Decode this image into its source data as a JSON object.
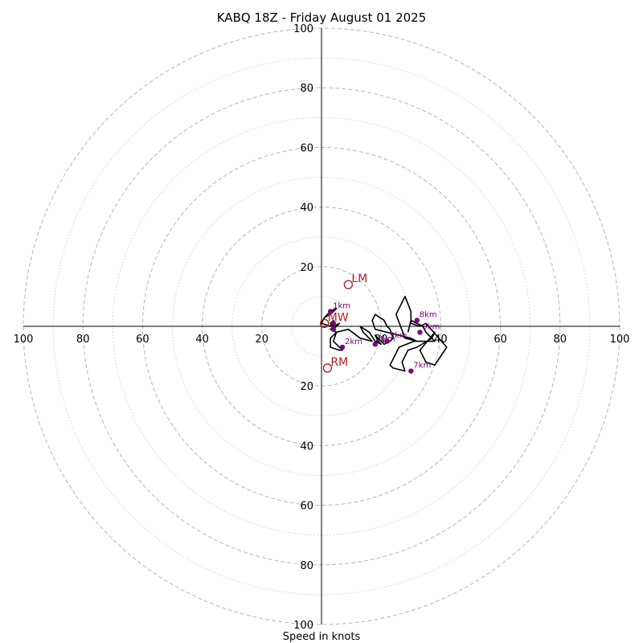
{
  "chart_data": {
    "type": "scatter",
    "title": "KABQ 18Z - Friday August 01 2025",
    "xlabel": "Speed in knots",
    "ylabel": "",
    "xlim": [
      -100,
      100
    ],
    "ylim": [
      -100,
      100
    ],
    "rings_major": [
      20,
      40,
      60,
      80,
      100
    ],
    "rings_minor": [
      10,
      30,
      50,
      70,
      90
    ],
    "x_tick_labels": [
      "100",
      "80",
      "60",
      "40",
      "20",
      "20",
      "40",
      "60",
      "80",
      "100"
    ],
    "y_tick_labels": [
      "100",
      "80",
      "60",
      "40",
      "20",
      "20",
      "40",
      "60",
      "80",
      "100"
    ],
    "x_tick_values": [
      -100,
      -80,
      -60,
      -40,
      -20,
      20,
      40,
      60,
      80,
      100
    ],
    "y_tick_values": [
      100,
      80,
      60,
      40,
      20,
      -20,
      -40,
      -60,
      -80,
      -100
    ],
    "hodograph_line": {
      "x": [
        1,
        3,
        5,
        3,
        1,
        0,
        3,
        4,
        3,
        4,
        5,
        6,
        4,
        3,
        5,
        3,
        3,
        6,
        7,
        4,
        5,
        9,
        13,
        17,
        16,
        14,
        13,
        16,
        18,
        20,
        19,
        18,
        19,
        21,
        23,
        24,
        23,
        22,
        21,
        18,
        17,
        18,
        26,
        30,
        32,
        28,
        25,
        26,
        28,
        30,
        30,
        33,
        35,
        42,
        38,
        35,
        33,
        38,
        37,
        32,
        29,
        27,
        28,
        24,
        23,
        26,
        31,
        38,
        35,
        34,
        30,
        29
      ],
      "y": [
        3,
        5,
        6,
        4,
        3,
        1,
        0,
        2,
        1,
        -1,
        0,
        1,
        0,
        -1,
        -2,
        -4,
        -7,
        -8,
        -8,
        -5,
        -2,
        -1,
        -4,
        -5,
        -4,
        -2,
        0,
        -2,
        -5,
        -6,
        -5,
        -3,
        -4,
        -6,
        -5,
        -4,
        -1,
        0,
        2,
        4,
        2,
        -1,
        -3,
        -4,
        -5,
        -4,
        4,
        6,
        10,
        5,
        1,
        0,
        1,
        -7,
        -13,
        -12,
        -8,
        -2,
        -4,
        -7,
        -8,
        -12,
        -15,
        -14,
        -13,
        -7,
        -5,
        -5,
        -2,
        0,
        2,
        -2
      ]
    },
    "height_points": [
      {
        "label": "1km",
        "x": 3,
        "y": 5
      },
      {
        "label": "",
        "x": 4,
        "y": 1
      },
      {
        "label": "",
        "x": 4,
        "y": -1
      },
      {
        "label": "2km",
        "x": 7,
        "y": -7
      },
      {
        "label": "3km",
        "x": 18,
        "y": -6
      },
      {
        "label": "5km",
        "x": 22,
        "y": -5
      },
      {
        "label": "7km",
        "x": 30,
        "y": -15
      },
      {
        "label": "8km",
        "x": 32,
        "y": 2
      },
      {
        "label": "9km",
        "x": 33,
        "y": -2
      }
    ],
    "storm_motions": [
      {
        "label": "LM",
        "x": 9,
        "y": 14
      },
      {
        "label": "RM",
        "x": 2,
        "y": -14
      },
      {
        "label": "MW",
        "x": 1,
        "y": 1
      }
    ]
  }
}
